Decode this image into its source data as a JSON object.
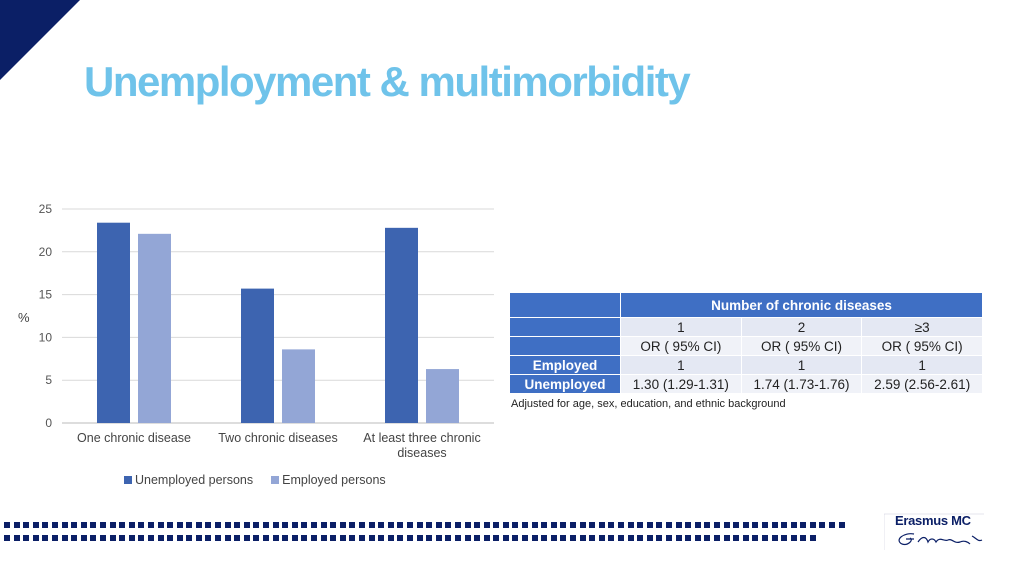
{
  "slide": {
    "title": "Unemployment & multimorbidity"
  },
  "chart_data": {
    "type": "bar",
    "categories": [
      [
        "One chronic disease"
      ],
      [
        "Two chronic diseases"
      ],
      [
        "At least three chronic",
        "diseases"
      ]
    ],
    "series": [
      {
        "name": "Unemployed persons",
        "values": [
          23.4,
          15.7,
          22.8
        ],
        "color": "#3d64b0"
      },
      {
        "name": "Employed persons",
        "values": [
          22.1,
          8.6,
          6.3
        ],
        "color": "#93a6d6"
      }
    ],
    "ylabel": "%",
    "ylim": [
      0,
      25
    ],
    "yticks": [
      0,
      5,
      10,
      15,
      20,
      25
    ],
    "grid": true,
    "legend": "bottom"
  },
  "or_table": {
    "header": "Number of chronic diseases",
    "columns": [
      "1",
      "2",
      "≥3"
    ],
    "subheaders": [
      "OR ( 95% CI)",
      "OR ( 95% CI)",
      "OR ( 95% CI)"
    ],
    "rows": [
      {
        "label": "Employed",
        "values": [
          "1",
          "1",
          "1"
        ]
      },
      {
        "label": "Unemployed",
        "values": [
          "1.30 (1.29-1.31)",
          "1.74 (1.73-1.76)",
          "2.59 (2.56-2.61)"
        ]
      }
    ],
    "note": "Adjusted for age, sex, education, and ethnic background"
  },
  "logo": {
    "text": "Erasmus MC",
    "signature": "Ezafus"
  },
  "colors": {
    "brand": "#0b1f66",
    "title": "#6fc3ea",
    "table_header": "#3f6fc4"
  }
}
